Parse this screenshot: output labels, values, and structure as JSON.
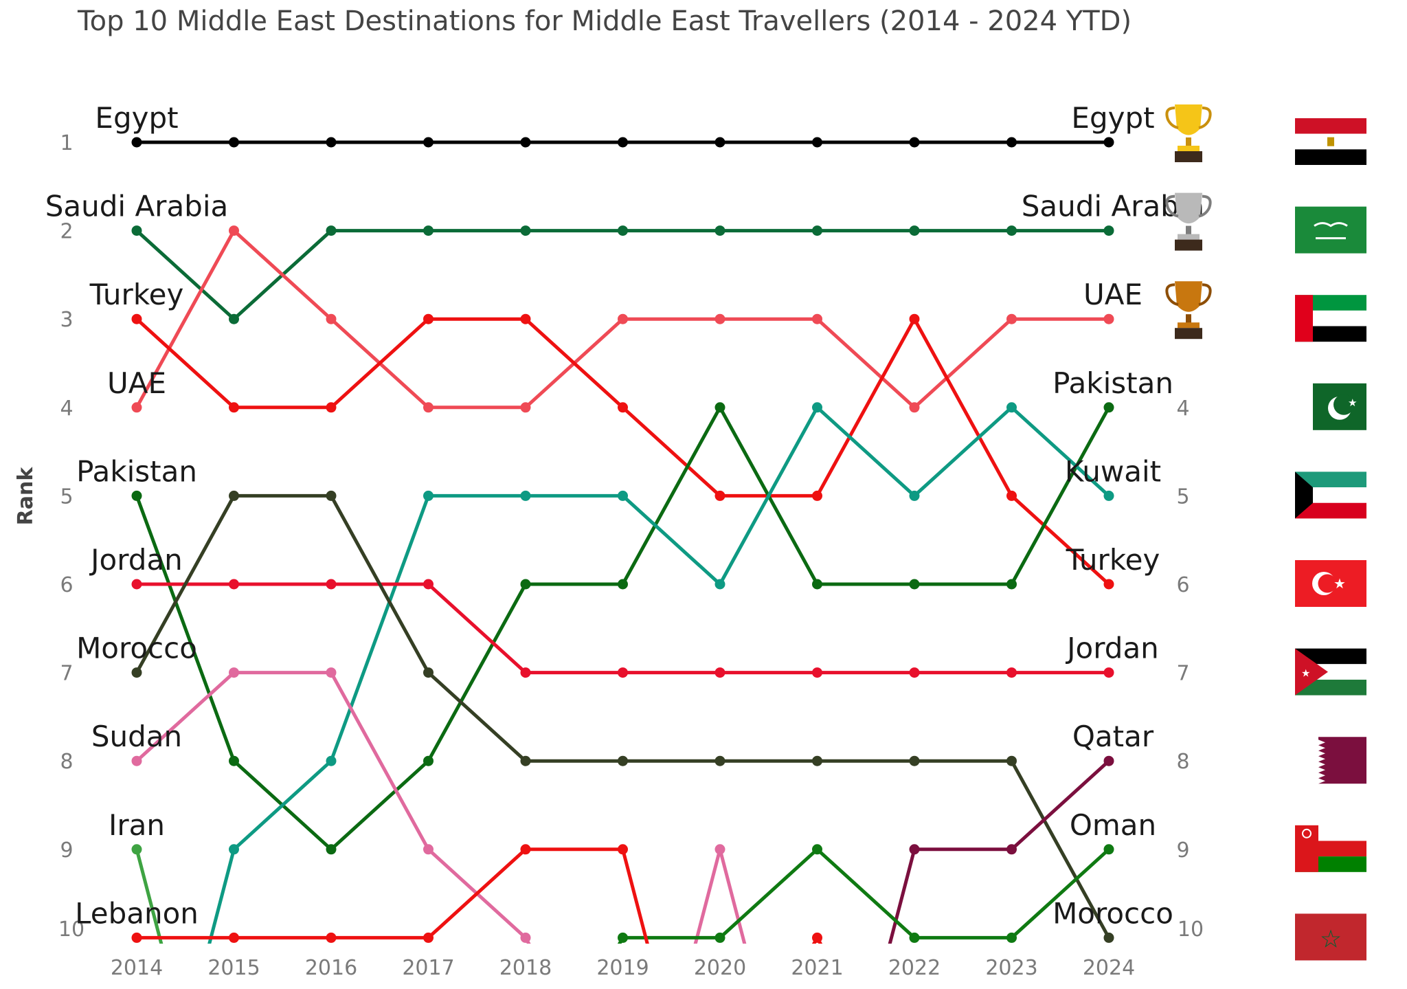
{
  "chart_data": {
    "type": "line",
    "title": "Top 10 Middle East Destinations for Middle East Travellers (2014 - 2024 YTD)",
    "ylabel": "Rank",
    "xlabel": "",
    "x": [
      "2014",
      "2015",
      "2016",
      "2017",
      "2018",
      "2019",
      "2020",
      "2021",
      "2022",
      "2023",
      "2024"
    ],
    "y_ticks_left": [
      "1",
      "2",
      "3",
      "4",
      "5",
      "6",
      "7",
      "8",
      "9",
      "10"
    ],
    "y_ticks_right": [
      "4",
      "5",
      "6",
      "7",
      "8",
      "9",
      "10"
    ],
    "ylim": [
      10,
      1
    ],
    "y_inverted": true,
    "grid": false,
    "series": [
      {
        "name": "Egypt",
        "color": "#000000",
        "values": [
          1,
          1,
          1,
          1,
          1,
          1,
          1,
          1,
          1,
          1,
          1
        ]
      },
      {
        "name": "Saudi Arabia",
        "color": "#0b6b37",
        "values": [
          2,
          3,
          2,
          2,
          2,
          2,
          2,
          2,
          2,
          2,
          2
        ]
      },
      {
        "name": "UAE",
        "color": "#ef4a55",
        "values": [
          4,
          2,
          3,
          4,
          4,
          3,
          3,
          3,
          4,
          3,
          3
        ]
      },
      {
        "name": "Turkey",
        "color": "#ee1111",
        "values": [
          3,
          4,
          4,
          3,
          3,
          4,
          5,
          5,
          3,
          5,
          6
        ]
      },
      {
        "name": "Pakistan",
        "color": "#0b6a12",
        "values": [
          5,
          8,
          9,
          8,
          6,
          6,
          4,
          6,
          6,
          6,
          4
        ]
      },
      {
        "name": "Kuwait",
        "color": "#0e9a83",
        "values": [
          null,
          9,
          8,
          5,
          5,
          5,
          6,
          4,
          5,
          4,
          5
        ]
      },
      {
        "name": "Jordan",
        "color": "#e8102c",
        "values": [
          6,
          6,
          6,
          6,
          7,
          7,
          7,
          7,
          7,
          7,
          7
        ]
      },
      {
        "name": "Morocco",
        "color": "#353f24",
        "values": [
          7,
          5,
          5,
          7,
          8,
          8,
          8,
          8,
          8,
          8,
          10
        ]
      },
      {
        "name": "Sudan",
        "color": "#e06a9e",
        "values": [
          8,
          7,
          7,
          9,
          10,
          null,
          9,
          null,
          null,
          null,
          null
        ]
      },
      {
        "name": "Qatar",
        "color": "#7b0f3e",
        "values": [
          null,
          null,
          null,
          null,
          null,
          null,
          null,
          null,
          9,
          9,
          8
        ]
      },
      {
        "name": "Oman",
        "color": "#0f7a12",
        "values": [
          null,
          null,
          null,
          null,
          null,
          10,
          10,
          9,
          10,
          10,
          9
        ]
      },
      {
        "name": "Iran",
        "color": "#3ea342",
        "values": [
          9,
          null,
          null,
          null,
          null,
          null,
          null,
          null,
          null,
          null,
          null
        ]
      },
      {
        "name": "Lebanon",
        "color": "#ee1111",
        "values": [
          10,
          10,
          10,
          10,
          9,
          9,
          null,
          10,
          null,
          null,
          null
        ]
      }
    ],
    "left_labels": [
      "Egypt",
      "Saudi Arabia",
      "Turkey",
      "UAE",
      "Pakistan",
      "Jordan",
      "Morocco",
      "Sudan",
      "Iran",
      "Lebanon"
    ],
    "right_labels": [
      "Egypt",
      "Saudi Arabia",
      "UAE",
      "Pakistan",
      "Kuwait",
      "Turkey",
      "Jordan",
      "Qatar",
      "Oman",
      "Morocco"
    ],
    "trophies": [
      "gold-trophy-icon",
      "silver-trophy-icon",
      "bronze-trophy-icon"
    ],
    "flags": [
      "egypt-flag-icon",
      "saudi-arabia-flag-icon",
      "uae-flag-icon",
      "pakistan-flag-icon",
      "kuwait-flag-icon",
      "turkey-flag-icon",
      "jordan-flag-icon",
      "qatar-flag-icon",
      "oman-flag-icon",
      "morocco-flag-icon"
    ]
  }
}
